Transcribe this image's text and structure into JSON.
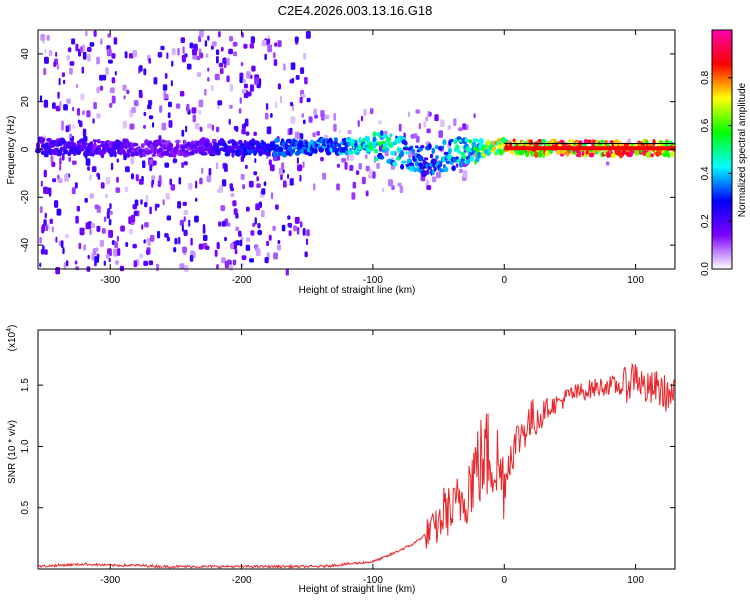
{
  "figure_title": "C2E4.2026.003.13.16.G18",
  "chart_data": [
    {
      "type": "heatmap",
      "xlabel": "Height of straight line (km)",
      "ylabel": "Frequency (Hz)",
      "xlim": [
        -355,
        130
      ],
      "ylim": [
        -50,
        50
      ],
      "xticks": [
        -300,
        -200,
        -100,
        0,
        100
      ],
      "yticks": [
        -40,
        -20,
        0,
        20,
        40
      ],
      "xtick_labels": [
        "-300",
        "-200",
        "-100",
        "0",
        "100"
      ],
      "ytick_labels": [
        "-40",
        "-20",
        "0",
        "20",
        "40"
      ],
      "colorbar": {
        "label": "Normalized spectral amplitude",
        "range": [
          0,
          1
        ],
        "ticks": [
          0.0,
          0.2,
          0.4,
          0.6,
          0.8
        ],
        "tick_labels": [
          "0.0",
          "0.2",
          "0.4",
          "0.6",
          "0.8"
        ],
        "colors": [
          "#ffffff",
          "#7b00ff",
          "#0000ff",
          "#00ffff",
          "#00ff00",
          "#ffff00",
          "#ff0000",
          "#ff00aa"
        ]
      },
      "ridge": [
        {
          "x": -350,
          "freq": 1.5,
          "amp": 0.25
        },
        {
          "x": -300,
          "freq": 0.5,
          "amp": 0.22
        },
        {
          "x": -250,
          "freq": 0.5,
          "amp": 0.18
        },
        {
          "x": -200,
          "freq": 0.5,
          "amp": 0.3
        },
        {
          "x": -150,
          "freq": 1.0,
          "amp": 0.38
        },
        {
          "x": -120,
          "freq": 1.5,
          "amp": 0.45
        },
        {
          "x": -100,
          "freq": 2.0,
          "amp": 0.55
        },
        {
          "x": -85,
          "freq": 0.0,
          "amp": 0.5
        },
        {
          "x": -70,
          "freq": -3.0,
          "amp": 0.4
        },
        {
          "x": -60,
          "freq": -5.0,
          "amp": 0.35
        },
        {
          "x": -40,
          "freq": -2.0,
          "amp": 0.45
        },
        {
          "x": -20,
          "freq": 0.5,
          "amp": 0.6
        },
        {
          "x": 0,
          "freq": 1.0,
          "amp": 0.85
        },
        {
          "x": 50,
          "freq": 0.5,
          "amp": 0.95
        },
        {
          "x": 100,
          "freq": 0.5,
          "amp": 0.95
        },
        {
          "x": 125,
          "freq": 0.5,
          "amp": 0.9
        }
      ]
    },
    {
      "type": "line",
      "xlabel": "Height of straight line (km)",
      "ylabel": "SNR (10 * v/v)",
      "y_multiplier_label": "(x10",
      "y_multiplier_exp": "4",
      "y_multiplier_close": ")",
      "xlim": [
        -355,
        130
      ],
      "ylim": [
        0,
        1.95
      ],
      "xticks": [
        -300,
        -200,
        -100,
        0,
        100
      ],
      "yticks": [
        0.5,
        1.0,
        1.5
      ],
      "xtick_labels": [
        "-300",
        "-200",
        "-100",
        "0",
        "100"
      ],
      "ytick_labels": [
        "0.5",
        "1.0",
        "1.5"
      ],
      "series": [
        {
          "color": "#e8262a",
          "x": [
            -355,
            -340,
            -320,
            -300,
            -280,
            -260,
            -240,
            -220,
            -200,
            -180,
            -160,
            -140,
            -120,
            -100,
            -90,
            -80,
            -70,
            -60,
            -50,
            -45,
            -40,
            -35,
            -30,
            -25,
            -20,
            -15,
            -10,
            -5,
            0,
            5,
            10,
            15,
            20,
            25,
            30,
            40,
            50,
            60,
            70,
            80,
            90,
            95,
            100,
            105,
            110,
            115,
            120,
            125,
            130
          ],
          "y": [
            0.02,
            0.03,
            0.04,
            0.03,
            0.03,
            0.02,
            0.02,
            0.02,
            0.02,
            0.02,
            0.02,
            0.02,
            0.04,
            0.06,
            0.1,
            0.15,
            0.2,
            0.28,
            0.35,
            0.5,
            0.45,
            0.55,
            0.6,
            0.75,
            0.85,
            0.9,
            0.95,
            0.85,
            0.7,
            0.95,
            1.05,
            1.15,
            1.2,
            1.25,
            1.3,
            1.35,
            1.42,
            1.45,
            1.48,
            1.5,
            1.48,
            1.52,
            1.6,
            1.5,
            1.45,
            1.48,
            1.45,
            1.42,
            1.4
          ]
        }
      ]
    }
  ]
}
